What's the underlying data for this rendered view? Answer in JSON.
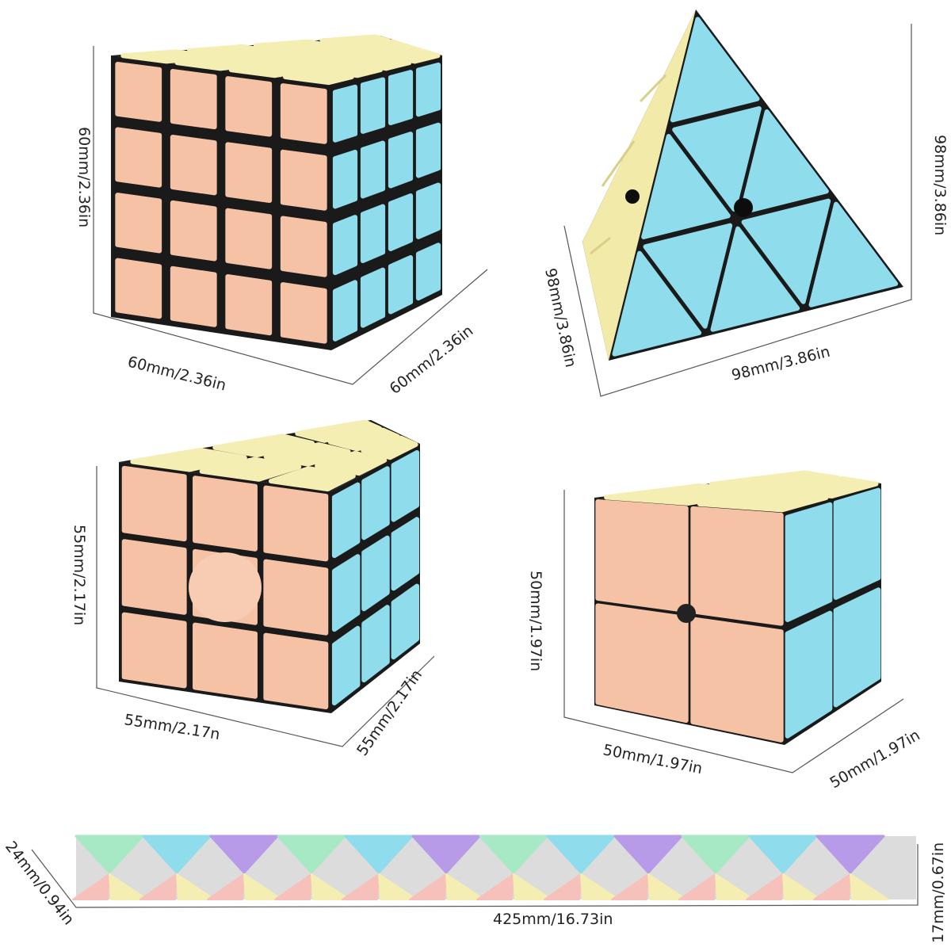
{
  "colors": {
    "peach": "#f6c2a6",
    "yellow": "#f5eeb2",
    "blue": "#8fdcec",
    "purple": "#b79be8",
    "green": "#a7e8c5",
    "pink": "#f6c1ba",
    "gap": "#1a1a1a"
  },
  "cube4x4": {
    "label_height": "60mm/2.36in",
    "label_width": "60mm/2.36in",
    "label_depth": "60mm/2.36in"
  },
  "pyramid": {
    "label_height": "98mm/3.86in",
    "label_width": "98mm/3.86in",
    "label_depth": "98mm/3.86in"
  },
  "cube3x3": {
    "label_height": "55mm/2.17in",
    "label_width": "55mm/2.17n",
    "label_depth": "55mm/2.17in"
  },
  "cube2x2": {
    "label_height": "50mm/1.97in",
    "label_width": "50mm/1.97in",
    "label_depth": "50mm/1.97in"
  },
  "snake": {
    "label_height": "17mm/0.67in",
    "label_width": "425mm/16.73in",
    "label_depth": "24mm/0.94in"
  }
}
